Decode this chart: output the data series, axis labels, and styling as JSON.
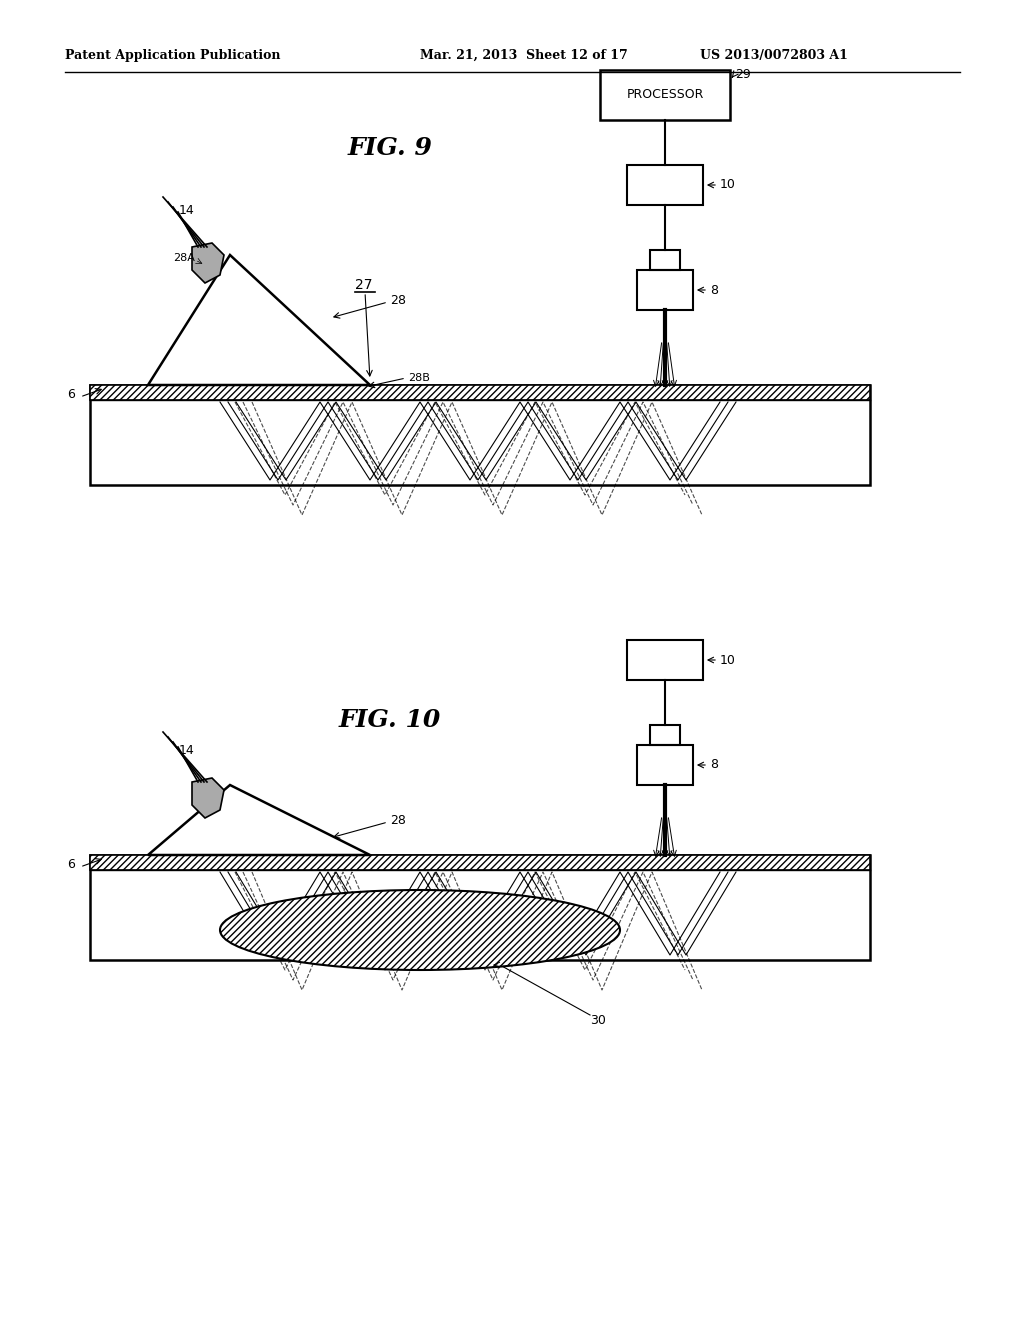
{
  "bg_color": "#ffffff",
  "header_left": "Patent Application Publication",
  "header_mid": "Mar. 21, 2013  Sheet 12 of 17",
  "header_right": "US 2013/0072803 A1",
  "fig9_title": "FIG. 9",
  "fig10_title": "FIG. 10",
  "line_color": "#000000"
}
